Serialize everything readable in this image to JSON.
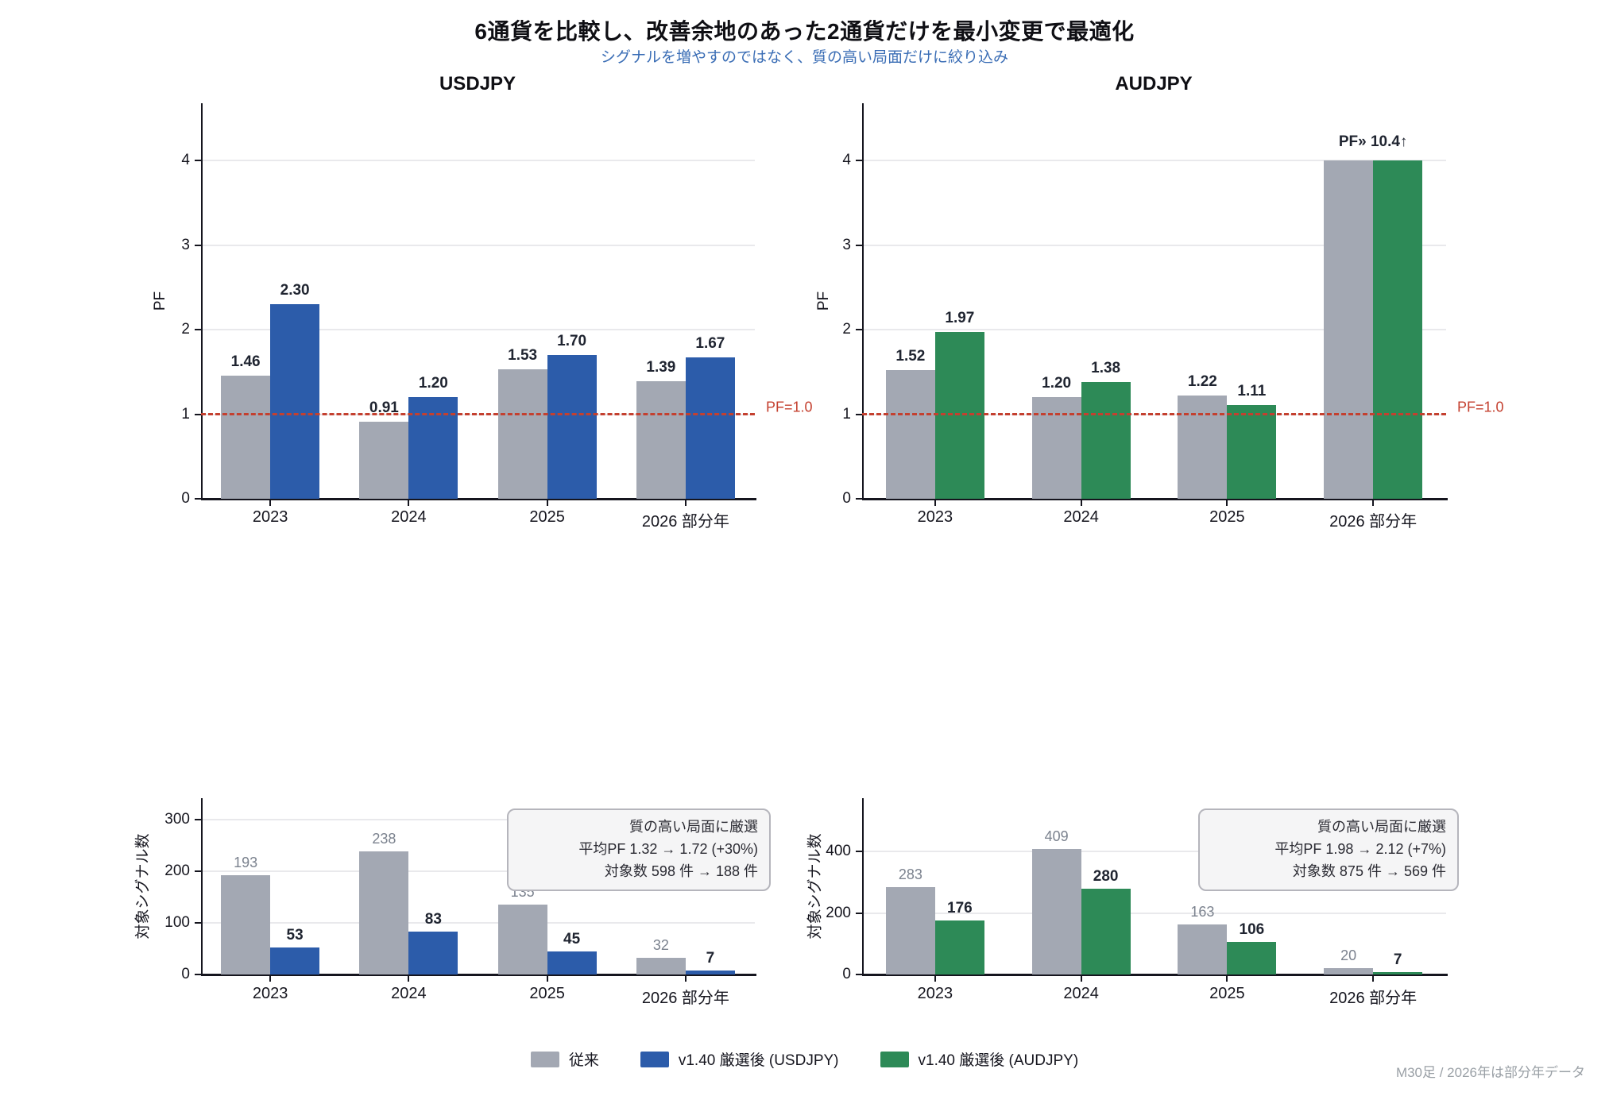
{
  "page": {
    "title": "6通貨を比較し、改善余地のあった2通貨だけを最小変更で最適化",
    "subtitle": "シグナルを増やすのではなく、質の高い局面だけに絞り込み",
    "footnote": "M30足  /  2026年は部分年データ"
  },
  "colors": {
    "gray": "#a3a8b3",
    "blue": "#2c5caa",
    "green": "#2d8a57",
    "ref": "#c4402f",
    "subtitle": "#3a6db5",
    "grid": "#e9e9ec",
    "axis": "#15151e",
    "label_dark": "#1f2430",
    "label_muted": "#7b828e"
  },
  "legend": {
    "items": [
      {
        "label": "従来",
        "color": "#a3a8b3"
      },
      {
        "label": "v1.40 厳選後 (USDJPY)",
        "color": "#2c5caa"
      },
      {
        "label": "v1.40 厳選後 (AUDJPY)",
        "color": "#2d8a57"
      }
    ]
  },
  "chart_data": [
    {
      "id": "usdjpy-pf",
      "type": "bar",
      "title": "USDJPY",
      "ylabel": "PF",
      "categories": [
        "2023",
        "2024",
        "2025",
        "2026 部分年"
      ],
      "yticks": [
        0,
        1,
        2,
        3,
        4
      ],
      "ylim": [
        0,
        4.67
      ],
      "grid": true,
      "ref_line": {
        "value": 1.0,
        "label": "PF=1.0"
      },
      "series": [
        {
          "name": "従来",
          "colorKey": "gray",
          "values": [
            1.46,
            0.91,
            1.53,
            1.39
          ],
          "labels": [
            "1.46",
            "0.91",
            "1.53",
            "1.39"
          ],
          "label_style": "bold"
        },
        {
          "name": "v1.40 厳選後 (USDJPY)",
          "colorKey": "blue",
          "values": [
            2.3,
            1.2,
            1.7,
            1.67
          ],
          "labels": [
            "2.30",
            "1.20",
            "1.70",
            "1.67"
          ],
          "label_style": "bold"
        }
      ],
      "annotations": []
    },
    {
      "id": "audjpy-pf",
      "type": "bar",
      "title": "AUDJPY",
      "ylabel": "PF",
      "categories": [
        "2023",
        "2024",
        "2025",
        "2026 部分年"
      ],
      "yticks": [
        0,
        1,
        2,
        3,
        4
      ],
      "ylim": [
        0,
        4.67
      ],
      "grid": true,
      "ref_line": {
        "value": 1.0,
        "label": "PF=1.0"
      },
      "series": [
        {
          "name": "従来",
          "colorKey": "gray",
          "values": [
            1.52,
            1.2,
            1.22,
            4.0
          ],
          "labels": [
            "1.52",
            "1.20",
            "1.22",
            ""
          ],
          "label_style": "bold"
        },
        {
          "name": "v1.40 厳選後 (AUDJPY)",
          "colorKey": "green",
          "values": [
            1.97,
            1.38,
            1.11,
            4.0
          ],
          "labels": [
            "1.97",
            "1.38",
            "1.11",
            ""
          ],
          "label_style": "bold"
        }
      ],
      "annotations": [
        {
          "text": "PF» 10.4↑",
          "category_index": 3
        }
      ]
    },
    {
      "id": "usdjpy-signals",
      "type": "bar",
      "title": "",
      "ylabel": "対象シグナル数",
      "categories": [
        "2023",
        "2024",
        "2025",
        "2026 部分年"
      ],
      "yticks": [
        0,
        100,
        200,
        300
      ],
      "ylim": [
        0,
        340
      ],
      "grid": true,
      "ref_line": null,
      "series": [
        {
          "name": "従来",
          "colorKey": "gray",
          "values": [
            193,
            238,
            135,
            32
          ],
          "labels": [
            "193",
            "238",
            "135",
            "32"
          ],
          "label_style": "muted"
        },
        {
          "name": "v1.40 厳選後 (USDJPY)",
          "colorKey": "blue",
          "values": [
            53,
            83,
            45,
            7
          ],
          "labels": [
            "53",
            "83",
            "45",
            "7"
          ],
          "label_style": "bold"
        }
      ],
      "annotations": [],
      "note_box": {
        "lines": [
          "質の高い局面に厳選",
          "平均PF  1.32 → 1.72 (+30%)",
          "対象数  598 件 → 188 件"
        ]
      }
    },
    {
      "id": "audjpy-signals",
      "type": "bar",
      "title": "",
      "ylabel": "対象シグナル数",
      "categories": [
        "2023",
        "2024",
        "2025",
        "2026 部分年"
      ],
      "yticks": [
        0,
        200,
        400
      ],
      "ylim": [
        0,
        574
      ],
      "grid": true,
      "ref_line": null,
      "series": [
        {
          "name": "従来",
          "colorKey": "gray",
          "values": [
            283,
            409,
            163,
            20
          ],
          "labels": [
            "283",
            "409",
            "163",
            "20"
          ],
          "label_style": "muted"
        },
        {
          "name": "v1.40 厳選後 (AUDJPY)",
          "colorKey": "green",
          "values": [
            176,
            280,
            106,
            7
          ],
          "labels": [
            "176",
            "280",
            "106",
            "7"
          ],
          "label_style": "bold"
        }
      ],
      "annotations": [],
      "note_box": {
        "lines": [
          "質の高い局面に厳選",
          "平均PF  1.98 → 2.12 (+7%)",
          "対象数  875 件 → 569 件"
        ]
      }
    }
  ]
}
